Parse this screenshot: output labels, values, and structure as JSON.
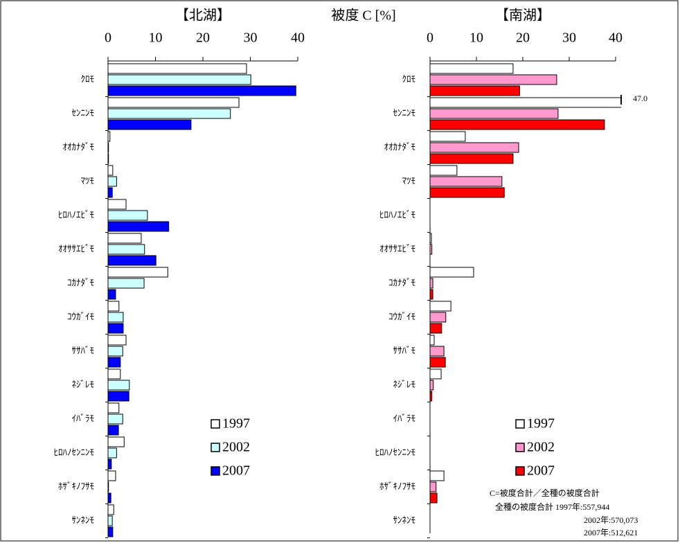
{
  "chart_data": [
    {
      "type": "barh",
      "title": "【北湖】",
      "xlabel": "被度 C [%]",
      "categories": [
        "ｸﾛﾓ",
        "ｾﾝﾆﾝﾓ",
        "ｵｵｶﾅﾀﾞﾓ",
        "ﾏﾂﾓ",
        "ﾋﾛﾊﾉｴﾋﾞﾓ",
        "ｵｵｻｻｴﾋﾞﾓ",
        "ｺｶﾅﾀﾞﾓ",
        "ｺｳｶﾞｲﾓ",
        "ｻｻﾊﾞﾓ",
        "ﾈｼﾞﾚﾓ",
        "ｲﾊﾞﾗﾓ",
        "ﾋﾛﾊﾉｾﾝﾆﾝﾓ",
        "ﾎｻﾞｷﾉﾌｻﾓ",
        "ｻﾝﾈﾝﾓ"
      ],
      "series": [
        {
          "name": "1997",
          "color": "#ffffff",
          "values": [
            29.2,
            27.6,
            0.4,
            1.0,
            3.8,
            7.0,
            12.6,
            2.3,
            3.8,
            2.6,
            2.3,
            3.4,
            1.6,
            1.2
          ]
        },
        {
          "name": "2002",
          "color": "#ccffff",
          "values": [
            30.1,
            25.8,
            0.1,
            1.8,
            8.3,
            7.7,
            7.6,
            3.2,
            3.1,
            4.5,
            3.1,
            1.8,
            0.1,
            0.9
          ]
        },
        {
          "name": "2007",
          "color": "#0000ff",
          "values": [
            39.6,
            17.5,
            0.1,
            0.9,
            12.8,
            10.1,
            1.6,
            3.2,
            2.6,
            4.4,
            2.2,
            0.7,
            0.6,
            1.0
          ]
        }
      ],
      "xlim": [
        0,
        40
      ],
      "xticks": [
        0,
        10,
        20,
        30,
        40
      ],
      "legend": "lower right"
    },
    {
      "type": "barh",
      "title": "【南湖】",
      "categories": [
        "ｸﾛﾓ",
        "ｾﾝﾆﾝﾓ",
        "ｵｵｶﾅﾀﾞﾓ",
        "ﾏﾂﾓ",
        "ﾋﾛﾊﾉｴﾋﾞﾓ",
        "ｵｵｻｻｴﾋﾞﾓ",
        "ｺｶﾅﾀﾞﾓ",
        "ｺｳｶﾞｲﾓ",
        "ｻｻﾊﾞﾓ",
        "ﾈｼﾞﾚﾓ",
        "ｲﾊﾞﾗﾓ",
        "ﾋﾛﾊﾉｾﾝﾆﾝﾓ",
        "ﾎｻﾞｷﾉﾌｻﾓ",
        "ｻﾝﾈﾝﾓ"
      ],
      "series": [
        {
          "name": "1997",
          "color": "#ffffff",
          "values": [
            17.9,
            47.0,
            7.6,
            5.8,
            0,
            0.3,
            9.4,
            4.5,
            0.9,
            2.4,
            0,
            0,
            3.0,
            0
          ],
          "value_labels": [
            null,
            "47.0",
            null,
            null,
            null,
            null,
            null,
            null,
            null,
            null,
            null,
            null,
            null,
            null
          ]
        },
        {
          "name": "2002",
          "color": "#ff99cc",
          "values": [
            27.3,
            27.6,
            19.1,
            15.5,
            0,
            0.4,
            0.6,
            3.4,
            3.0,
            0.7,
            0,
            0,
            1.3,
            0
          ]
        },
        {
          "name": "2007",
          "color": "#ff0000",
          "values": [
            19.3,
            37.6,
            17.9,
            16.0,
            0,
            0,
            0.6,
            2.5,
            3.3,
            0.4,
            0,
            0,
            1.5,
            0
          ]
        }
      ],
      "xlim": [
        0,
        40
      ],
      "xticks": [
        0,
        10,
        20,
        30,
        40
      ],
      "legend": "lower right",
      "annotations": [
        "C=被度合計／全種の被度合計",
        "全種の被度合計  1997年:557,944",
        "2002年:570,073",
        "2007年:512,621"
      ]
    }
  ]
}
